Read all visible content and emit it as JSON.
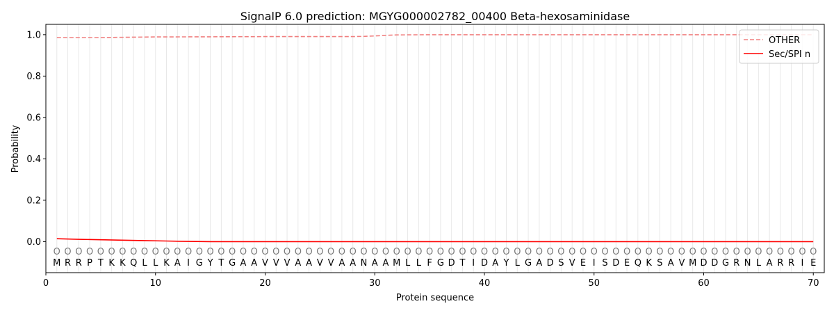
{
  "chart_data": {
    "type": "line",
    "title": "SignalP 6.0 prediction: MGYG000002782_00400 Beta-hexosaminidase",
    "xlabel": "Protein sequence",
    "ylabel": "Probability",
    "xlim": [
      0,
      71
    ],
    "ylim": [
      -0.15,
      1.05
    ],
    "x_ticks": [
      0,
      10,
      20,
      30,
      40,
      50,
      60,
      70
    ],
    "y_ticks": [
      0.0,
      0.2,
      0.4,
      0.6,
      0.8,
      1.0
    ],
    "x_tick_labels": [
      "0",
      "10",
      "20",
      "30",
      "40",
      "50",
      "60",
      "70"
    ],
    "y_tick_labels": [
      "0.0",
      "0.2",
      "0.4",
      "0.6",
      "0.8",
      "1.0"
    ],
    "sequence": [
      "M",
      "R",
      "R",
      "P",
      "T",
      "K",
      "K",
      "Q",
      "L",
      "L",
      "K",
      "A",
      "I",
      "G",
      "Y",
      "T",
      "G",
      "A",
      "A",
      "V",
      "V",
      "V",
      "A",
      "A",
      "V",
      "V",
      "A",
      "A",
      "N",
      "A",
      "A",
      "M",
      "L",
      "L",
      "F",
      "G",
      "D",
      "T",
      "I",
      "D",
      "A",
      "Y",
      "L",
      "G",
      "A",
      "D",
      "S",
      "V",
      "E",
      "I",
      "S",
      "D",
      "E",
      "Q",
      "K",
      "S",
      "A",
      "V",
      "M",
      "D",
      "D",
      "G",
      "R",
      "N",
      "L",
      "A",
      "R",
      "R",
      "I",
      "E"
    ],
    "state_label": "O",
    "legend_position": "upper right",
    "series": [
      {
        "name": "OTHER",
        "color": "#f08080",
        "style": "dashed",
        "x": [
          1,
          5,
          10,
          15,
          20,
          25,
          28,
          29,
          30,
          31,
          32,
          35,
          40,
          50,
          60,
          70
        ],
        "values": [
          0.986,
          0.986,
          0.989,
          0.99,
          0.991,
          0.991,
          0.991,
          0.992,
          0.994,
          0.997,
          0.999,
          1.0,
          1.0,
          1.0,
          1.0,
          1.0
        ]
      },
      {
        "name": "Sec/SPI n",
        "color": "#ff0000",
        "style": "solid",
        "x": [
          1,
          3,
          5,
          7,
          9,
          11,
          13,
          15,
          20,
          30,
          40,
          50,
          60,
          70
        ],
        "values": [
          0.014,
          0.011,
          0.009,
          0.007,
          0.005,
          0.003,
          0.001,
          0.0,
          0.0,
          0.0,
          0.0,
          0.0,
          0.0,
          0.0
        ]
      }
    ]
  }
}
